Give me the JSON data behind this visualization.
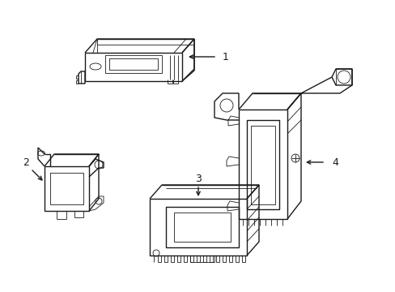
{
  "background_color": "#ffffff",
  "line_color": "#1a1a1a",
  "lw_main": 1.0,
  "lw_thin": 0.6,
  "fig_width": 4.89,
  "fig_height": 3.6,
  "dpi": 100,
  "xlim": [
    0,
    489
  ],
  "ylim": [
    0,
    360
  ]
}
